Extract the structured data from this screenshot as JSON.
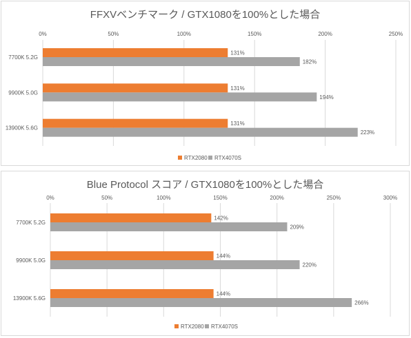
{
  "colors": {
    "rtx2080": "#ED7D31",
    "rtx4070s": "#A5A5A5",
    "grid": "#D9D9D9",
    "text": "#595959"
  },
  "chart_data": [
    {
      "type": "bar",
      "orientation": "horizontal",
      "title": "FFXVベンチマーク / GTX1080を100%とした場合",
      "categories": [
        "7700K 5.2G",
        "9900K 5.0G",
        "13900K 5.6G"
      ],
      "series": [
        {
          "name": "RTX2080",
          "values": [
            131,
            131,
            131
          ]
        },
        {
          "name": "RTX4070S",
          "values": [
            182,
            194,
            223
          ]
        }
      ],
      "xlim": [
        0,
        250
      ],
      "tick_labels": [
        "0%",
        "50%",
        "100%",
        "150%",
        "200%",
        "250%"
      ],
      "data_labels": [
        [
          "131%",
          "131%",
          "131%"
        ],
        [
          "182%",
          "194%",
          "223%"
        ]
      ],
      "grid": true,
      "legend": "bottom",
      "x_axis_position": "top"
    },
    {
      "type": "bar",
      "orientation": "horizontal",
      "title": "Blue Protocol スコア / GTX1080を100%とした場合",
      "categories": [
        "7700K 5.2G",
        "9900K 5.0G",
        "13900K 5.6G"
      ],
      "series": [
        {
          "name": "RTX2080",
          "values": [
            142,
            144,
            144
          ]
        },
        {
          "name": "RTX4070S",
          "values": [
            209,
            220,
            266
          ]
        }
      ],
      "xlim": [
        0,
        300
      ],
      "tick_labels": [
        "0%",
        "50%",
        "100%",
        "150%",
        "200%",
        "250%",
        "300%"
      ],
      "data_labels": [
        [
          "142%",
          "144%",
          "144%"
        ],
        [
          "209%",
          "220%",
          "266%"
        ]
      ],
      "grid": true,
      "legend": "bottom",
      "x_axis_position": "top"
    }
  ]
}
